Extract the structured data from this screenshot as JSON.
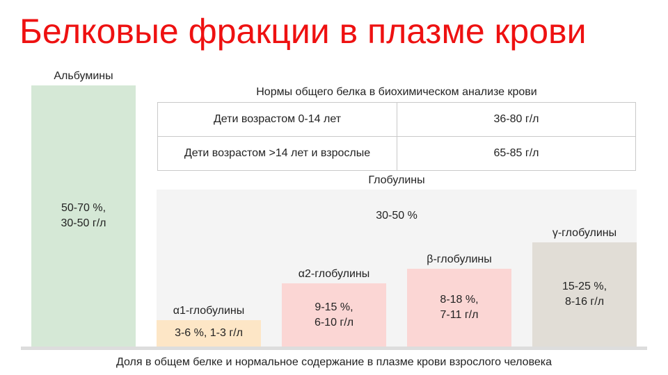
{
  "title": "Белковые фракции в плазме крови",
  "albumins": {
    "label": "Альбумины",
    "value": "50-70 %,\n30-50 г/л"
  },
  "norms_table": {
    "caption": "Нормы общего белка в биохимическом анализе крови",
    "rows": [
      {
        "group": "Дети возрастом 0-14 лет",
        "range": "36-80 г/л"
      },
      {
        "group": "Дети возрастом >14 лет и взрослые",
        "range": "65-85 г/л"
      }
    ]
  },
  "globulins": {
    "label": "Глобулины",
    "value": "30-50 %",
    "fractions": [
      {
        "label": "α1-глобулины",
        "value": "3-6 %, 1-3 г/л"
      },
      {
        "label": "α2-глобулины",
        "value": "9-15 %,\n6-10 г/л"
      },
      {
        "label": "β-глобулины",
        "value": "8-18 %,\n7-11 г/л"
      },
      {
        "label": "γ-глобулины",
        "value": "15-25 %,\n8-16 г/л"
      }
    ]
  },
  "footer": "Доля в общем белке и нормальное содержание в плазме крови взрослого человека",
  "colors": {
    "title": "#ee1111",
    "albumins": "#d5e8d6",
    "alpha1": "#fde6c6",
    "alpha2": "#fbd6d4",
    "beta": "#fbd6d4",
    "gamma": "#e1ddd6",
    "globulin_area": "#f4f4f4"
  }
}
